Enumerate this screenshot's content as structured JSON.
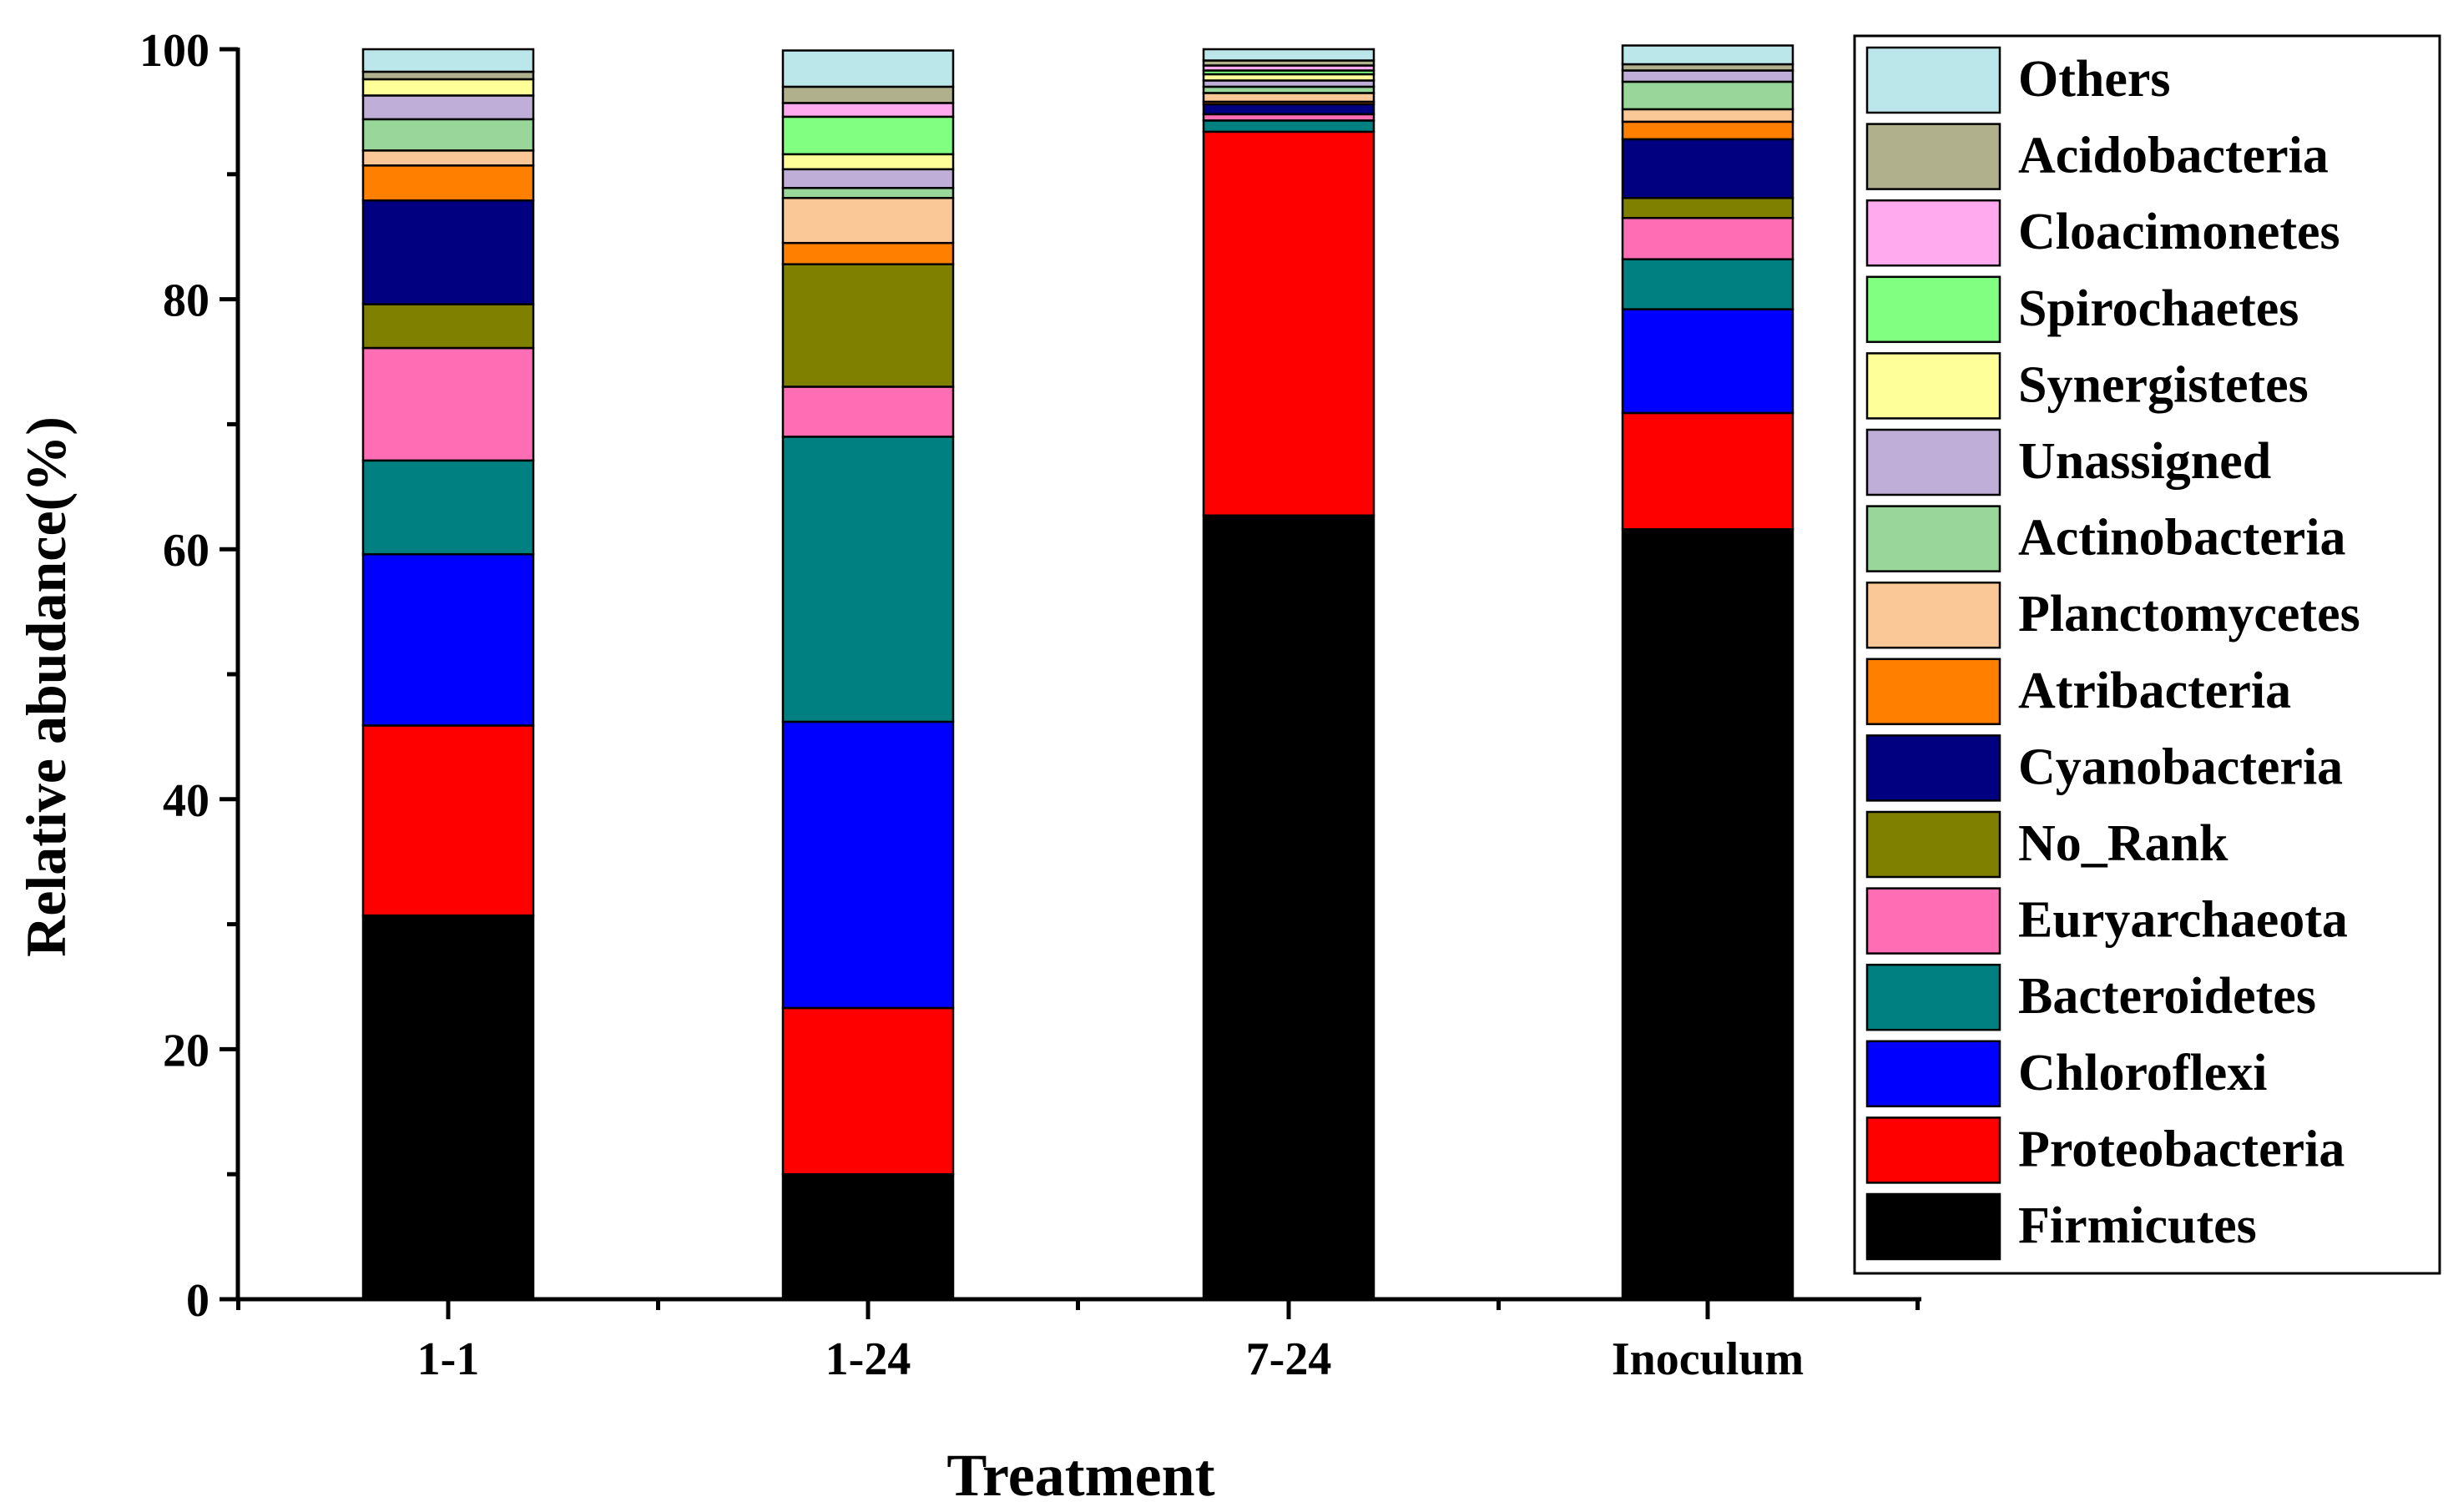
{
  "chart_data": {
    "type": "bar",
    "stacked": true,
    "title": "",
    "xlabel": "Treatment",
    "ylabel": "Relative abudance(%)",
    "ylim": [
      0,
      100
    ],
    "yticks": [
      0,
      20,
      40,
      60,
      80,
      100
    ],
    "legend_position": "right",
    "categories": [
      "1-1",
      "1-24",
      "7-24",
      "Inoculum"
    ],
    "series": [
      {
        "name": "Firmicutes",
        "color": "#000000",
        "values": [
          30.7,
          10.0,
          62.7,
          61.6
        ]
      },
      {
        "name": "Proteobacteria",
        "color": "#ff0000",
        "values": [
          15.2,
          13.3,
          30.7,
          9.3
        ]
      },
      {
        "name": "Chloroflexi",
        "color": "#0000ff",
        "values": [
          13.7,
          22.9,
          0.0,
          8.3
        ]
      },
      {
        "name": "Bacteroidetes",
        "color": "#008080",
        "values": [
          7.5,
          22.8,
          0.9,
          4.0
        ]
      },
      {
        "name": "Euryarchaeota",
        "color": "#ff6eb4",
        "values": [
          9.0,
          4.0,
          0.5,
          3.3
        ]
      },
      {
        "name": "No_Rank",
        "color": "#808000",
        "values": [
          3.5,
          9.8,
          0.0,
          1.6
        ]
      },
      {
        "name": "Cyanobacteria",
        "color": "#000080",
        "values": [
          8.3,
          0.0,
          0.8,
          4.7
        ]
      },
      {
        "name": "Atribacteria",
        "color": "#ff8000",
        "values": [
          2.8,
          1.7,
          0.2,
          1.4
        ]
      },
      {
        "name": "Planctomycetes",
        "color": "#fac896",
        "values": [
          1.2,
          3.6,
          0.7,
          1.0
        ]
      },
      {
        "name": "Actinobacteria",
        "color": "#99d699",
        "values": [
          2.5,
          0.8,
          0.5,
          2.2
        ]
      },
      {
        "name": "Unassigned",
        "color": "#bfaed8",
        "values": [
          1.9,
          1.5,
          0.5,
          0.9
        ]
      },
      {
        "name": "Synergistetes",
        "color": "#ffff99",
        "values": [
          1.3,
          1.2,
          0.5,
          0.0
        ]
      },
      {
        "name": "Spirochaetes",
        "color": "#80ff80",
        "values": [
          0.0,
          3.0,
          0.3,
          0.0
        ]
      },
      {
        "name": "Cloacimonetes",
        "color": "#ffaaee",
        "values": [
          0.0,
          1.1,
          0.4,
          0.0
        ]
      },
      {
        "name": "Acidobacteria",
        "color": "#b0b08c",
        "values": [
          0.6,
          1.3,
          0.4,
          0.5
        ]
      },
      {
        "name": "Others",
        "color": "#bbe7eb",
        "values": [
          1.8,
          2.9,
          0.9,
          1.5
        ]
      }
    ]
  }
}
